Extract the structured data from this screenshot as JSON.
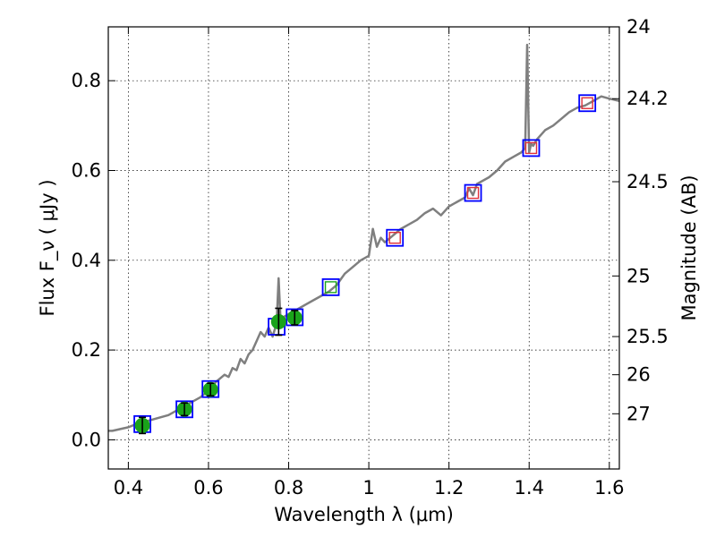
{
  "chart_data": {
    "type": "scatter",
    "xlabel": "Wavelength  λ (μm)",
    "ylabel": "Flux  F_ν  ( μJy )",
    "ylabel_right": "Magnitude (AB)",
    "xlim": [
      0.35,
      1.625
    ],
    "ylim": [
      -0.065,
      0.92
    ],
    "grid": true,
    "x_ticks": [
      {
        "value": 0.4,
        "label": "0.4"
      },
      {
        "value": 0.6,
        "label": "0.6"
      },
      {
        "value": 0.8,
        "label": "0.8"
      },
      {
        "value": 1.0,
        "label": "1"
      },
      {
        "value": 1.2,
        "label": "1.2"
      },
      {
        "value": 1.4,
        "label": "1.4"
      },
      {
        "value": 1.6,
        "label": "1.6"
      }
    ],
    "y_ticks": [
      {
        "value": 0.0,
        "label": "0.0"
      },
      {
        "value": 0.2,
        "label": "0.2"
      },
      {
        "value": 0.4,
        "label": "0.4"
      },
      {
        "value": 0.6,
        "label": "0.6"
      },
      {
        "value": 0.8,
        "label": "0.8"
      }
    ],
    "right_ticks": [
      {
        "flux": 0.92,
        "label": "24"
      },
      {
        "flux": 0.76,
        "label": "24.2"
      },
      {
        "flux": 0.575,
        "label": "24.5"
      },
      {
        "flux": 0.365,
        "label": "25"
      },
      {
        "flux": 0.23,
        "label": "25.5"
      },
      {
        "flux": 0.145,
        "label": "26"
      },
      {
        "flux": 0.058,
        "label": "27"
      }
    ],
    "series": [
      {
        "kind": "spectrum",
        "color": "#7f7f7f",
        "x": [
          0.35,
          0.36,
          0.38,
          0.4,
          0.42,
          0.44,
          0.46,
          0.48,
          0.5,
          0.52,
          0.54,
          0.56,
          0.58,
          0.6,
          0.62,
          0.64,
          0.65,
          0.66,
          0.67,
          0.68,
          0.69,
          0.7,
          0.71,
          0.72,
          0.73,
          0.74,
          0.75,
          0.76,
          0.77,
          0.775,
          0.78,
          0.785,
          0.79,
          0.8,
          0.82,
          0.84,
          0.86,
          0.88,
          0.9,
          0.92,
          0.94,
          0.96,
          0.98,
          1.0,
          1.01,
          1.02,
          1.03,
          1.04,
          1.06,
          1.08,
          1.1,
          1.12,
          1.14,
          1.16,
          1.18,
          1.2,
          1.22,
          1.24,
          1.25,
          1.26,
          1.27,
          1.28,
          1.3,
          1.32,
          1.34,
          1.36,
          1.38,
          1.39,
          1.395,
          1.4,
          1.405,
          1.41,
          1.42,
          1.44,
          1.46,
          1.48,
          1.5,
          1.52,
          1.54,
          1.56,
          1.58,
          1.6,
          1.625
        ],
        "y": [
          0.02,
          0.02,
          0.024,
          0.028,
          0.035,
          0.04,
          0.045,
          0.05,
          0.055,
          0.065,
          0.075,
          0.085,
          0.095,
          0.11,
          0.13,
          0.145,
          0.14,
          0.16,
          0.155,
          0.18,
          0.17,
          0.19,
          0.2,
          0.22,
          0.24,
          0.23,
          0.25,
          0.23,
          0.26,
          0.36,
          0.26,
          0.27,
          0.275,
          0.28,
          0.29,
          0.3,
          0.31,
          0.32,
          0.33,
          0.345,
          0.37,
          0.385,
          0.4,
          0.41,
          0.47,
          0.43,
          0.45,
          0.44,
          0.455,
          0.47,
          0.48,
          0.49,
          0.505,
          0.515,
          0.5,
          0.52,
          0.53,
          0.54,
          0.56,
          0.545,
          0.57,
          0.575,
          0.585,
          0.6,
          0.62,
          0.63,
          0.64,
          0.65,
          0.88,
          0.64,
          0.66,
          0.655,
          0.67,
          0.69,
          0.7,
          0.715,
          0.73,
          0.74,
          0.745,
          0.755,
          0.765,
          0.76,
          0.755
        ]
      },
      {
        "kind": "photometry_observed",
        "color": "#1aa31a",
        "x": [
          0.435,
          0.54,
          0.605,
          0.775,
          0.815
        ],
        "y": [
          0.032,
          0.068,
          0.112,
          0.263,
          0.272
        ],
        "yerr": [
          0.018,
          0.014,
          0.014,
          0.03,
          0.016
        ]
      },
      {
        "kind": "model_box",
        "color": "#0000ff",
        "x": [
          0.435,
          0.54,
          0.605,
          0.77,
          0.815,
          0.905,
          1.065,
          1.26,
          1.405,
          1.545
        ],
        "y": [
          0.035,
          0.068,
          0.113,
          0.252,
          0.273,
          0.34,
          0.45,
          0.55,
          0.65,
          0.75
        ]
      },
      {
        "kind": "model_inner_green",
        "color": "#1aa31a",
        "x": [
          0.905
        ],
        "y": [
          0.34
        ]
      },
      {
        "kind": "model_inner_red",
        "color": "#e0303a",
        "x": [
          1.065,
          1.26,
          1.405,
          1.545
        ],
        "y": [
          0.45,
          0.55,
          0.65,
          0.75
        ]
      }
    ]
  }
}
